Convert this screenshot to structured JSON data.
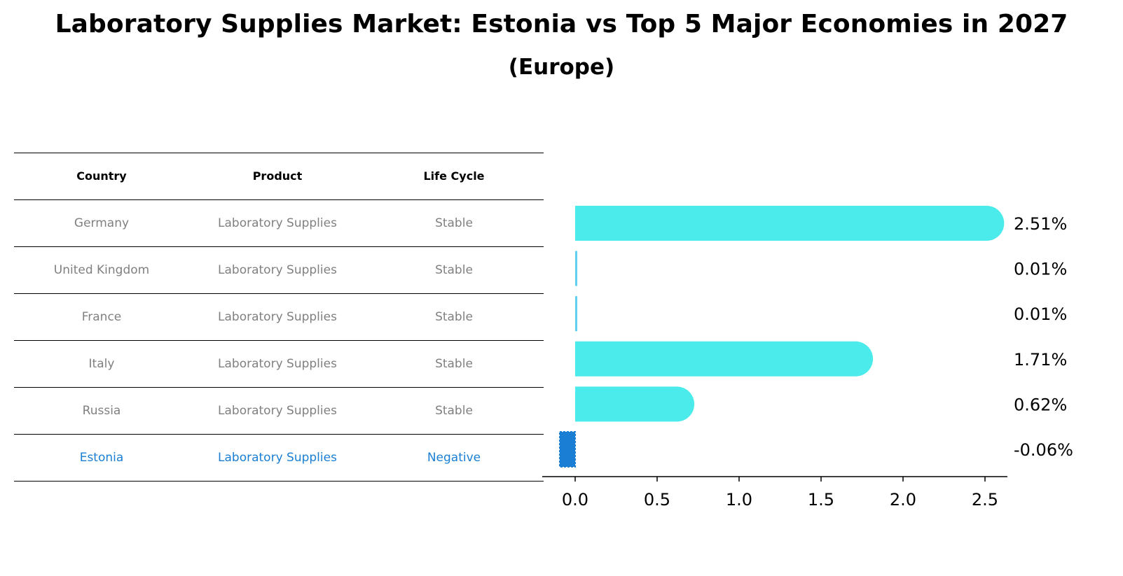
{
  "title": "Laboratory Supplies Market: Estonia vs Top 5 Major Economies in 2027",
  "subtitle": "(Europe)",
  "table": {
    "headers": [
      "Country",
      "Product",
      "Life Cycle"
    ],
    "rows": [
      {
        "country": "Germany",
        "product": "Laboratory Supplies",
        "life_cycle": "Stable"
      },
      {
        "country": "United Kingdom",
        "product": "Laboratory Supplies",
        "life_cycle": "Stable"
      },
      {
        "country": "France",
        "product": "Laboratory Supplies",
        "life_cycle": "Stable"
      },
      {
        "country": "Italy",
        "product": "Laboratory Supplies",
        "life_cycle": "Stable"
      },
      {
        "country": "Russia",
        "product": "Laboratory Supplies",
        "life_cycle": "Stable"
      },
      {
        "country": "Estonia",
        "product": "Laboratory Supplies",
        "life_cycle": "Negative"
      }
    ]
  },
  "chart_data": {
    "type": "bar",
    "orientation": "horizontal",
    "categories": [
      "Germany",
      "United Kingdom",
      "France",
      "Italy",
      "Russia",
      "Estonia"
    ],
    "values": [
      2.51,
      0.01,
      0.01,
      1.71,
      0.62,
      -0.06
    ],
    "data_labels": [
      "2.51%",
      "0.01%",
      "0.01%",
      "1.71%",
      "0.62%",
      "-0.06%"
    ],
    "xticks": [
      0.0,
      0.5,
      1.0,
      1.5,
      2.0,
      2.5
    ],
    "xtick_labels": [
      "0.0",
      "0.5",
      "1.0",
      "1.5",
      "2.0",
      "2.5"
    ],
    "xlim": [
      -0.2,
      2.62
    ],
    "colors": {
      "positive": "#4cebeb",
      "small_positive": "#5fd0f0",
      "highlight": "#1a7fd4"
    },
    "grid": false,
    "xlabel": "",
    "ylabel": ""
  }
}
